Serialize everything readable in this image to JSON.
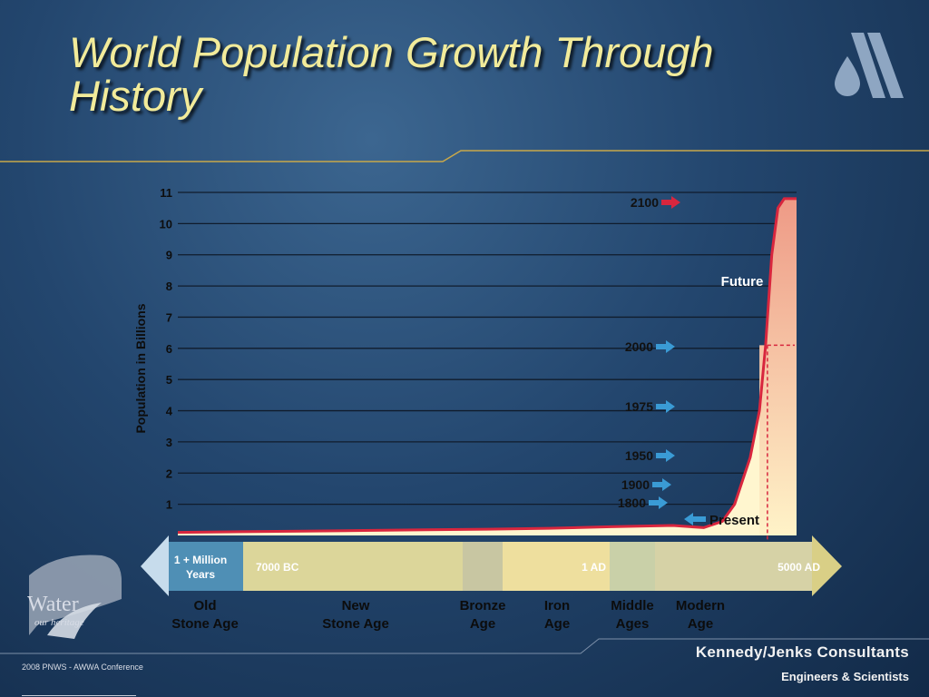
{
  "slide": {
    "title": "World Population Growth Through History",
    "footer_left": "2008 PNWS - AWWA Conference",
    "brand": "Kennedy/Jenks Consultants",
    "tagline": "Engineers & Scientists",
    "water_logo_text": "Water",
    "water_logo_sub": "our heritage"
  },
  "chart_data": {
    "type": "area",
    "title": "",
    "ylabel": "Population in Billions",
    "ylim": [
      0,
      11
    ],
    "yticks": [
      1,
      2,
      3,
      4,
      5,
      6,
      7,
      8,
      9,
      10,
      11
    ],
    "grid": true,
    "colors": {
      "line": "#d8263e",
      "future_top": "#ee9a86",
      "future_bottom": "#fff3c8",
      "arrow_blue": "#3a9bd5",
      "arrow_red": "#d8263e"
    },
    "series": [
      {
        "values_desc": "population curve",
        "points": [
          [
            0,
            0.1
          ],
          [
            0.1,
            0.12
          ],
          [
            0.2,
            0.14
          ],
          [
            0.3,
            0.16
          ],
          [
            0.4,
            0.18
          ],
          [
            0.5,
            0.2
          ],
          [
            0.6,
            0.23
          ],
          [
            0.7,
            0.28
          ],
          [
            0.8,
            0.32
          ],
          [
            0.85,
            0.25
          ],
          [
            0.88,
            0.45
          ],
          [
            0.9,
            1.0
          ],
          [
            0.91,
            1.6
          ],
          [
            0.925,
            2.5
          ],
          [
            0.94,
            4.0
          ],
          [
            0.95,
            6.1
          ],
          [
            0.96,
            9.0
          ],
          [
            0.97,
            10.5
          ],
          [
            0.98,
            10.8
          ],
          [
            1.0,
            10.8
          ]
        ]
      }
    ],
    "annotations": [
      {
        "label": "2100",
        "y": 10.8,
        "color": "red"
      },
      {
        "label": "2000",
        "y": 6.1,
        "color": "blue"
      },
      {
        "label": "1975",
        "y": 4.2,
        "color": "blue"
      },
      {
        "label": "1950",
        "y": 2.5,
        "color": "blue"
      },
      {
        "label": "1900",
        "y": 1.6,
        "color": "blue"
      },
      {
        "label": "1800",
        "y": 1.0,
        "color": "blue"
      }
    ],
    "future_label": "Future",
    "present_label": "Present",
    "timeline": {
      "start_label": "1 + Million Years",
      "segments": [
        {
          "label": "7000 BC",
          "color": "#dcd69a"
        },
        {
          "label": "",
          "color": "#c8c6a2"
        },
        {
          "label": "",
          "color": "#eedf9e"
        },
        {
          "label": "1 AD",
          "color": "#c9d0a8"
        },
        {
          "label": "",
          "color": "#d6d2a6"
        },
        {
          "label": "5000 AD",
          "color": "#e3d791"
        }
      ],
      "ages": [
        {
          "line1": "Old",
          "line2": "Stone Age"
        },
        {
          "line1": "New",
          "line2": "Stone Age"
        },
        {
          "line1": "Bronze",
          "line2": "Age"
        },
        {
          "line1": "Iron",
          "line2": "Age"
        },
        {
          "line1": "Middle",
          "line2": "Ages"
        },
        {
          "line1": "Modern",
          "line2": "Age"
        }
      ]
    }
  }
}
